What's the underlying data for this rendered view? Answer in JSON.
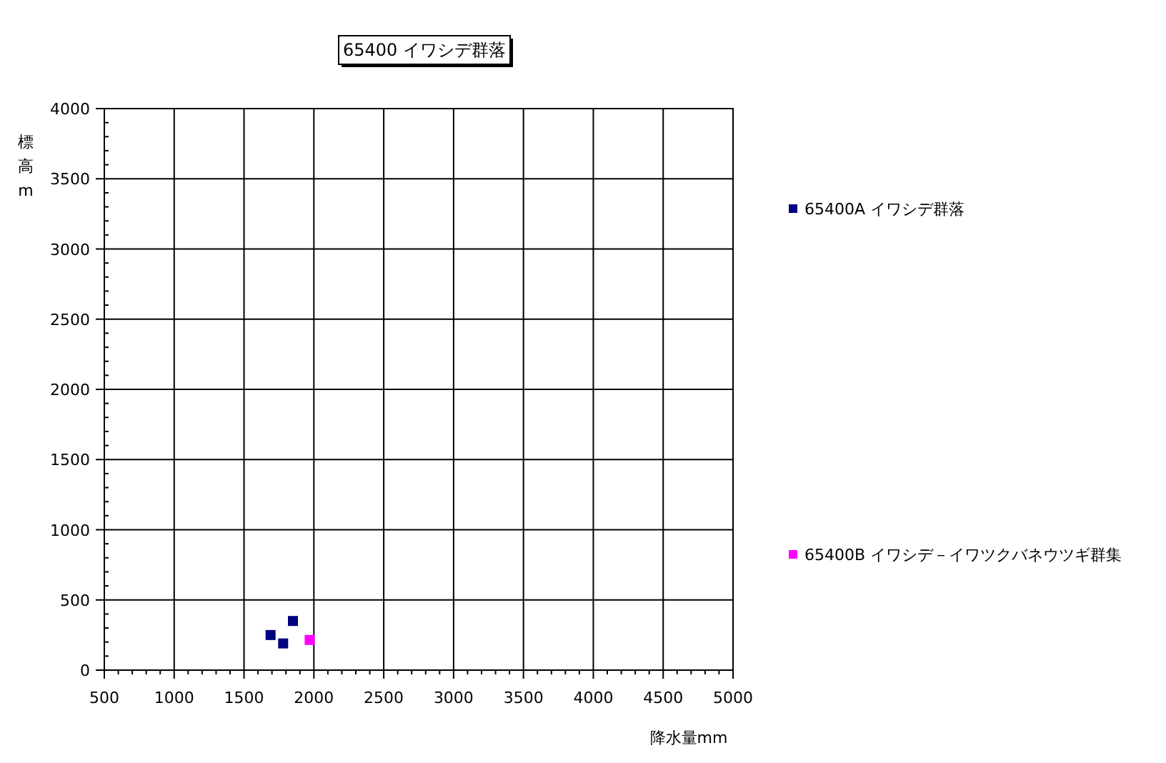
{
  "chart_data": {
    "type": "scatter",
    "title": "65400 イワシデ群落",
    "xlabel": "降水量mm",
    "ylabel": "標高m",
    "xlim": [
      500,
      5000
    ],
    "xticks": [
      500,
      1000,
      1500,
      2000,
      2500,
      3000,
      3500,
      4000,
      4500,
      5000
    ],
    "ylim": [
      0,
      4000
    ],
    "yticks": [
      0,
      500,
      1000,
      1500,
      2000,
      2500,
      3000,
      3500,
      4000
    ],
    "grid": true,
    "legend": "right",
    "marker": "square",
    "series": [
      {
        "name": "65400A イワシデ群落",
        "color": "#000080",
        "x": [
          1690,
          1780,
          1850
        ],
        "values": [
          250,
          190,
          350
        ]
      },
      {
        "name": "65400B イワシデ－イワツクバネウツギ群集",
        "color": "#ff00ff",
        "x": [
          1970
        ],
        "values": [
          215
        ]
      }
    ]
  }
}
